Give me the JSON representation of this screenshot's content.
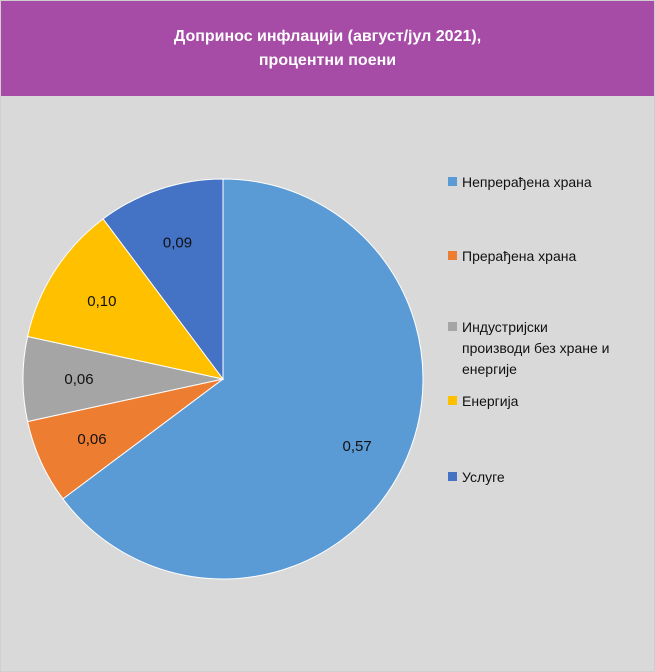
{
  "title": {
    "line1": "Допринос инфлацији (август/јул 2021),",
    "line2": "процентни поени"
  },
  "chart_data": {
    "type": "pie",
    "title": "Допринос инфлацији (август/јул 2021), процентни поени",
    "categories": [
      "Непрерађена храна",
      "Прерађена храна",
      "Индустријски производи без хране и енергије",
      "Енергија",
      "Услуге"
    ],
    "values": [
      0.57,
      0.06,
      0.06,
      0.1,
      0.09
    ],
    "value_labels": [
      "0,57",
      "0,06",
      "0,06",
      "0,10",
      "0,09"
    ],
    "colors": [
      "#5b9bd5",
      "#ed7d31",
      "#a5a5a5",
      "#ffc000",
      "#4472c4"
    ],
    "legend_lines": [
      [
        "Непрерађена храна"
      ],
      [
        "Прерађена храна"
      ],
      [
        "Индустријски",
        "производи без хране и",
        "енергије"
      ],
      [
        "Енергија"
      ],
      [
        "Услуге"
      ]
    ],
    "legend": "right",
    "start_angle": "12 o'clock",
    "direction": "clockwise"
  },
  "colors": {
    "title_background": "#a64ca6",
    "chart_background": "#d9d9d9"
  }
}
